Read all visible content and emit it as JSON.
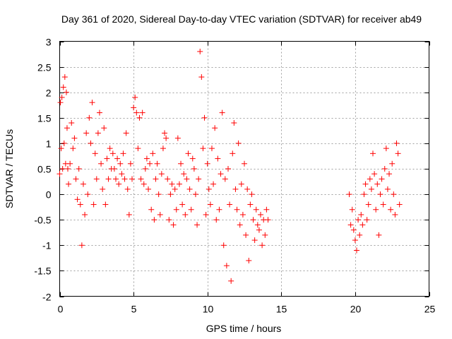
{
  "chart_data": {
    "type": "scatter",
    "title": "Day 361 of 2020, Sidereal Day-to-day VTEC variation (SDTVAR) for receiver ab49",
    "xlabel": "GPS time / hours",
    "ylabel": "SDTVAR / TECUs",
    "xlim": [
      0,
      25
    ],
    "ylim": [
      -2,
      3
    ],
    "xticks": [
      0,
      5,
      10,
      15,
      20,
      25
    ],
    "xtick_labels": [
      "0",
      "5",
      "10",
      "15",
      "20",
      "25"
    ],
    "yticks": [
      -2,
      -1.5,
      -1,
      -0.5,
      0,
      0.5,
      1,
      1.5,
      2,
      2.5,
      3
    ],
    "ytick_labels": [
      "-2",
      "-1.5",
      "-1",
      "-0.5",
      "0",
      "0.5",
      "1",
      "1.5",
      "2",
      "2.5",
      "3"
    ],
    "grid": true,
    "marker": "+",
    "color": "#ff0000",
    "series": [
      {
        "name": "SDTVAR",
        "x": [
          0.0,
          0.05,
          0.1,
          0.15,
          0.2,
          0.25,
          0.3,
          0.35,
          0.4,
          0.45,
          0.5,
          0.55,
          0.6,
          0.7,
          0.8,
          0.9,
          1.0,
          1.1,
          1.2,
          1.3,
          1.4,
          1.5,
          1.6,
          1.7,
          1.8,
          1.9,
          2.0,
          2.1,
          2.2,
          2.3,
          2.4,
          2.5,
          2.6,
          2.7,
          2.8,
          2.9,
          3.0,
          3.1,
          3.2,
          3.3,
          3.4,
          3.5,
          3.6,
          3.7,
          3.8,
          3.9,
          4.0,
          4.1,
          4.2,
          4.3,
          4.4,
          4.5,
          4.6,
          4.7,
          4.8,
          4.9,
          5.0,
          5.1,
          5.2,
          5.3,
          5.4,
          5.5,
          5.6,
          5.7,
          5.8,
          5.9,
          6.0,
          6.1,
          6.2,
          6.3,
          6.4,
          6.5,
          6.6,
          6.7,
          6.8,
          6.9,
          7.0,
          7.1,
          7.2,
          7.3,
          7.4,
          7.5,
          7.6,
          7.7,
          7.8,
          7.9,
          8.0,
          8.1,
          8.2,
          8.3,
          8.4,
          8.5,
          8.6,
          8.7,
          8.8,
          8.9,
          9.0,
          9.1,
          9.2,
          9.3,
          9.4,
          9.5,
          9.6,
          9.7,
          9.8,
          9.9,
          10.0,
          10.1,
          10.2,
          10.3,
          10.4,
          10.5,
          10.6,
          10.7,
          10.8,
          10.9,
          11.0,
          11.1,
          11.2,
          11.3,
          11.4,
          11.5,
          11.6,
          11.7,
          11.8,
          11.9,
          12.0,
          12.1,
          12.2,
          12.3,
          12.4,
          12.5,
          12.6,
          12.7,
          12.8,
          12.9,
          13.0,
          13.1,
          13.2,
          13.3,
          13.4,
          13.5,
          13.6,
          13.7,
          13.8,
          13.9,
          14.0,
          14.1,
          19.6,
          19.7,
          19.8,
          19.9,
          20.0,
          20.1,
          20.2,
          20.3,
          20.4,
          20.5,
          20.6,
          20.7,
          20.8,
          20.9,
          21.0,
          21.1,
          21.2,
          21.3,
          21.4,
          21.5,
          21.6,
          21.7,
          21.8,
          21.9,
          22.0,
          22.1,
          22.2,
          22.3,
          22.4,
          22.5,
          22.6,
          22.7,
          22.8,
          22.9,
          23.0
        ],
        "y": [
          0.4,
          1.8,
          0.9,
          1.9,
          0.5,
          2.1,
          1.0,
          2.3,
          0.6,
          2.0,
          1.3,
          0.5,
          0.2,
          0.6,
          1.4,
          0.9,
          1.1,
          0.3,
          -0.1,
          0.5,
          -0.2,
          -1.0,
          0.2,
          -0.4,
          1.2,
          0.0,
          1.5,
          1.0,
          1.8,
          -0.2,
          0.8,
          0.3,
          1.2,
          1.6,
          0.6,
          0.1,
          1.3,
          -0.2,
          0.7,
          0.3,
          0.9,
          0.5,
          0.8,
          0.5,
          0.3,
          0.7,
          0.2,
          0.6,
          0.4,
          0.8,
          0.3,
          1.2,
          0.1,
          -0.4,
          0.6,
          0.3,
          1.7,
          1.9,
          1.6,
          0.9,
          1.5,
          0.3,
          1.6,
          0.2,
          0.5,
          0.7,
          0.1,
          0.6,
          -0.3,
          0.8,
          -0.5,
          0.3,
          0.6,
          0.0,
          -0.4,
          0.4,
          0.9,
          1.2,
          1.1,
          0.3,
          -0.5,
          0.0,
          0.2,
          -0.6,
          0.1,
          -0.3,
          1.1,
          0.2,
          0.6,
          -0.2,
          0.4,
          -0.4,
          0.3,
          0.8,
          0.1,
          -0.3,
          0.7,
          0.5,
          0.0,
          -0.6,
          0.3,
          2.8,
          2.3,
          0.9,
          1.5,
          -0.4,
          0.6,
          0.1,
          -0.2,
          0.9,
          0.2,
          1.3,
          -0.5,
          0.7,
          -0.3,
          0.4,
          1.6,
          -1.0,
          0.3,
          -1.4,
          0.5,
          -0.2,
          -1.7,
          0.8,
          1.4,
          0.1,
          -0.3,
          1.0,
          -0.6,
          0.2,
          -0.4,
          0.6,
          -0.8,
          0.1,
          -1.3,
          -0.2,
          0.0,
          -0.5,
          -0.9,
          -0.3,
          -0.6,
          -0.7,
          -0.4,
          -1.0,
          -0.5,
          -0.8,
          -0.3,
          -0.5,
          0.0,
          -0.6,
          -0.3,
          -0.7,
          -0.9,
          -1.1,
          -0.5,
          -0.8,
          -0.4,
          -0.6,
          0.0,
          0.2,
          -0.5,
          -0.2,
          0.3,
          0.1,
          0.8,
          0.4,
          -0.3,
          0.2,
          -0.8,
          0.0,
          0.3,
          -0.2,
          0.5,
          0.9,
          0.1,
          0.4,
          -0.3,
          0.6,
          0.0,
          -0.4,
          1.0,
          0.8,
          -0.2
        ]
      }
    ]
  }
}
